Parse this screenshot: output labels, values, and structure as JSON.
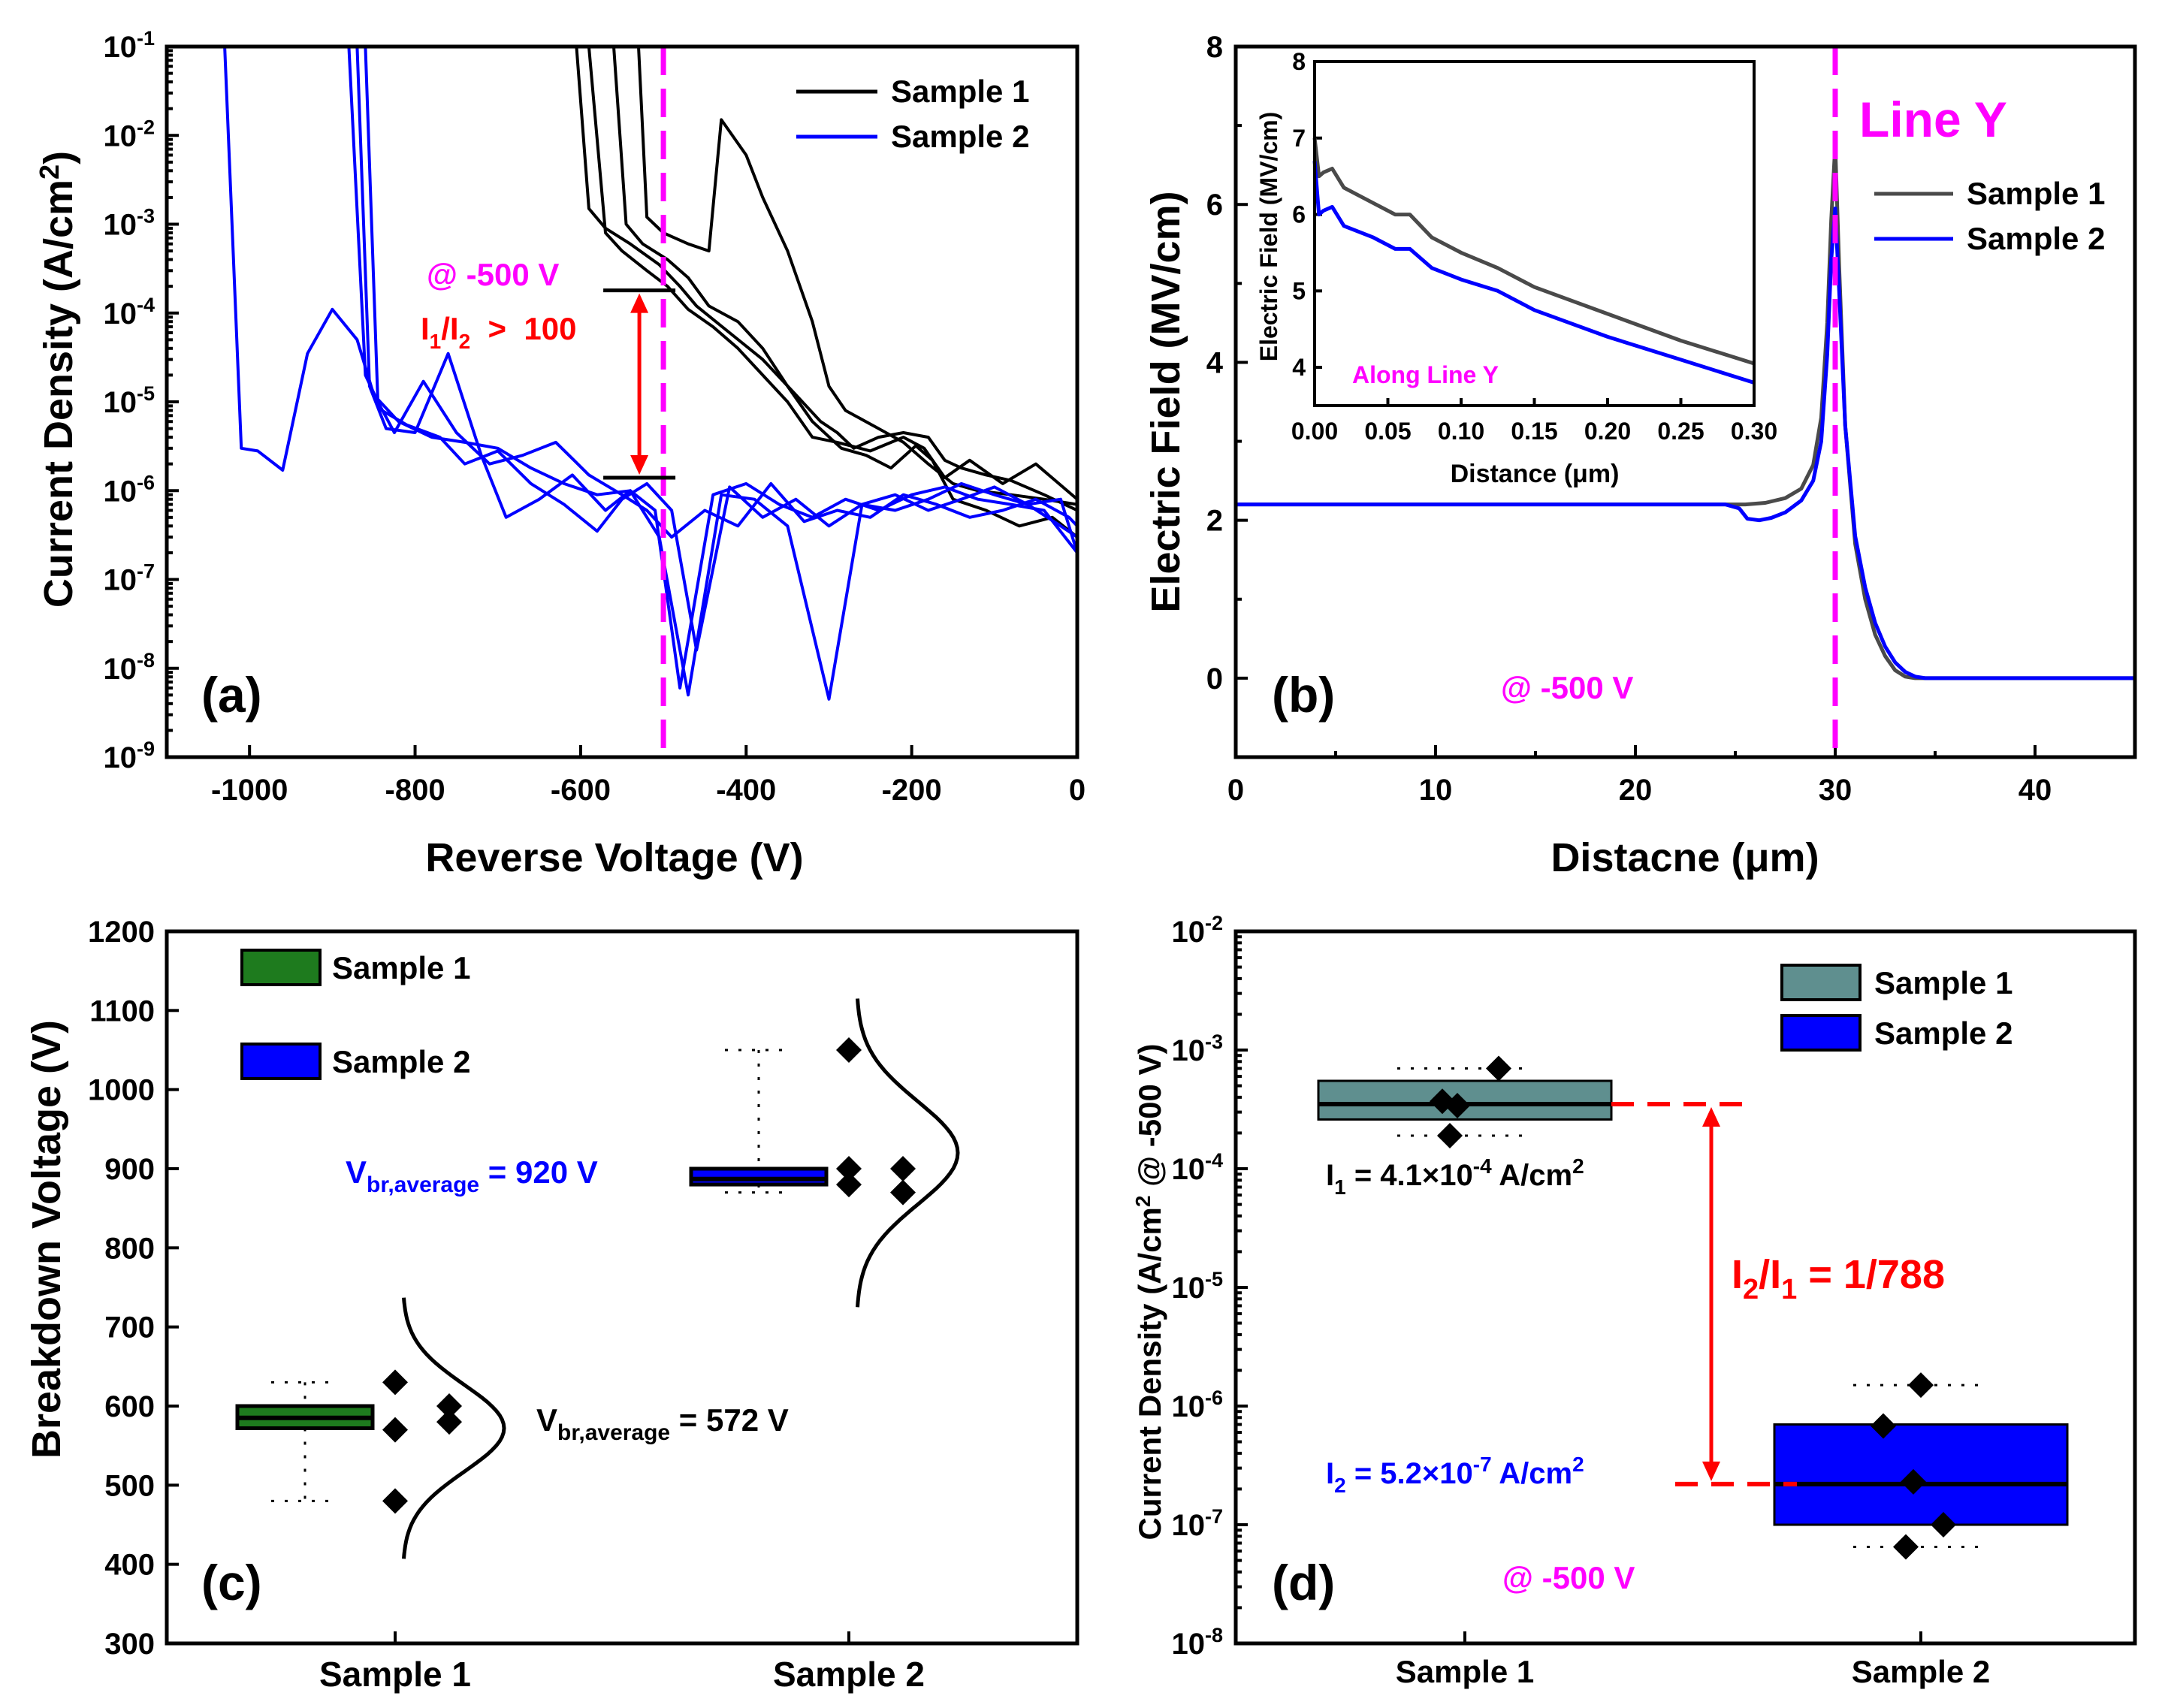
{
  "figure": "four-panel reverse breakdown comparison",
  "colors": {
    "sample1": "#000000",
    "sample1_gray": "#4a4a4a",
    "sample2": "#0000ff",
    "magenta": "#ff00ff",
    "red": "#ff0000",
    "green": "#1e7b1e",
    "teal": "#5f8f8f"
  },
  "chart_data": [
    {
      "panel_label": "(a)",
      "type": "line",
      "yscale": "log",
      "xlabel": "Reverse Voltage (V)",
      "ylabel_main": "Current Density (A/cm",
      "ylabel_sup": "2",
      "ylabel_end": ")",
      "xlim": [
        -1100,
        0
      ],
      "ylim_exp": [
        -9,
        -1
      ],
      "xticks": [
        -1000,
        -800,
        -600,
        -400,
        -200,
        0
      ],
      "ytick_exps": [
        -9,
        -8,
        -7,
        -6,
        -5,
        -4,
        -3,
        -2,
        -1
      ],
      "ytick_base": "10",
      "legend": [
        "Sample 1",
        "Sample 2"
      ],
      "annotation_voltage": "@ -500 V",
      "ratio_parts": [
        "I",
        "1",
        "/I",
        "2",
        "  >  100"
      ],
      "marker_x": -500,
      "arrow_top": 0.00018,
      "arrow_bottom": 1.4e-06,
      "series": [
        {
          "name": "Sample 1",
          "x": [
            -605,
            -590,
            -570,
            -540,
            -505,
            -480,
            -460,
            -420,
            -380,
            -340,
            -310,
            -290,
            -270,
            -240,
            -210,
            -180,
            -160,
            -140,
            -110,
            -80,
            -40,
            0
          ],
          "y": [
            0.1,
            0.0015,
            0.0009,
            0.0006,
            0.00035,
            0.0002,
            0.00012,
            6e-05,
            3e-05,
            1.2e-05,
            6e-06,
            4.5e-06,
            3e-06,
            4e-06,
            4.5e-06,
            4e-06,
            2.2e-06,
            1.8e-06,
            1.5e-06,
            1.3e-06,
            9e-07,
            6e-07
          ]
        },
        {
          "name": "Sample 1",
          "x": [
            -590,
            -570,
            -550,
            -520,
            -495,
            -470,
            -440,
            -410,
            -380,
            -350,
            -320,
            -290,
            -250,
            -210,
            -185,
            -160,
            -130,
            -90,
            -50,
            0
          ],
          "y": [
            0.1,
            0.0008,
            0.0005,
            0.0003,
            0.0002,
            0.00011,
            7e-05,
            4e-05,
            2e-05,
            1e-05,
            4e-06,
            3.5e-06,
            2.8e-06,
            4e-06,
            3e-06,
            1.4e-06,
            2.2e-06,
            1.2e-06,
            2e-06,
            8e-07
          ]
        },
        {
          "name": "Sample 1",
          "x": [
            -560,
            -545,
            -525,
            -495,
            -470,
            -445,
            -410,
            -380,
            -350,
            -320,
            -285,
            -255,
            -225,
            -195,
            -175,
            -150,
            -110,
            -70,
            -30,
            0
          ],
          "y": [
            0.1,
            0.001,
            0.0006,
            0.0004,
            0.00025,
            0.00012,
            8e-05,
            4e-05,
            1.5e-05,
            6e-06,
            3e-06,
            2.5e-06,
            1.8e-06,
            3.2e-06,
            2.2e-06,
            8e-07,
            6e-07,
            4e-07,
            5e-07,
            3e-07
          ]
        },
        {
          "name": "Sample 1",
          "x": [
            -530,
            -520,
            -500,
            -470,
            -445,
            -430,
            -400,
            -380,
            -350,
            -320,
            -300,
            -280,
            -240,
            -210,
            -180,
            -150,
            -120,
            -80,
            -40,
            0
          ],
          "y": [
            0.1,
            0.0012,
            0.0008,
            0.0006,
            0.0005,
            0.015,
            0.006,
            0.002,
            0.0005,
            8e-05,
            1.5e-05,
            8e-06,
            5e-06,
            3.5e-06,
            2e-06,
            1.2e-06,
            1e-06,
            9e-07,
            8e-07,
            7e-07
          ]
        },
        {
          "name": "Sample 2",
          "x": [
            -1030,
            -1010,
            -990,
            -960,
            -930,
            -900,
            -870,
            -850,
            -820,
            -780,
            -740,
            -700,
            -660,
            -620,
            -580,
            -540,
            -510,
            -480,
            -440,
            -400,
            -360,
            -320,
            -280,
            -240,
            -200,
            -160,
            -120,
            -80,
            -40,
            0
          ],
          "y": [
            0.1,
            3e-06,
            2.8e-06,
            1.7e-06,
            3.5e-05,
            0.00011,
            5e-05,
            1.2e-05,
            6e-06,
            4e-06,
            3.5e-06,
            3e-06,
            1.8e-06,
            1.2e-06,
            9e-07,
            1e-06,
            6e-07,
            6e-09,
            9e-07,
            1.2e-06,
            7e-07,
            5e-07,
            8e-07,
            6e-07,
            9e-07,
            1.1e-06,
            8e-07,
            7e-07,
            6e-07,
            2e-07
          ]
        },
        {
          "name": "Sample 2",
          "x": [
            -880,
            -860,
            -840,
            -810,
            -770,
            -740,
            -700,
            -660,
            -620,
            -580,
            -550,
            -520,
            -490,
            -460,
            -420,
            -380,
            -340,
            -300,
            -260,
            -220,
            -180,
            -140,
            -100,
            -60,
            -20,
            0
          ],
          "y": [
            0.1,
            2e-05,
            8e-06,
            5.5e-06,
            4e-06,
            2e-06,
            2.8e-06,
            1.2e-06,
            7e-07,
            3.5e-07,
            8e-07,
            1.2e-06,
            6e-07,
            1.6e-08,
            1.1e-06,
            5e-07,
            8e-07,
            4e-07,
            7e-07,
            9e-07,
            6e-07,
            8e-07,
            1.1e-06,
            7e-07,
            4e-07,
            3e-07
          ]
        },
        {
          "name": "Sample 2",
          "x": [
            -870,
            -855,
            -835,
            -800,
            -760,
            -720,
            -690,
            -650,
            -610,
            -570,
            -540,
            -505,
            -470,
            -430,
            -390,
            -350,
            -300,
            -260,
            -220,
            -180,
            -140,
            -100,
            -60,
            -20,
            0
          ],
          "y": [
            0.1,
            1.5e-05,
            5e-06,
            4.5e-06,
            3.5e-05,
            2.5e-06,
            5e-07,
            8e-07,
            1.5e-06,
            6e-07,
            1e-06,
            3e-07,
            5e-09,
            9e-07,
            8e-07,
            4e-07,
            4.5e-09,
            7e-07,
            6e-07,
            8e-07,
            1.2e-06,
            9e-07,
            7e-07,
            8e-07,
            2e-07
          ]
        },
        {
          "name": "Sample 2",
          "x": [
            -860,
            -845,
            -825,
            -790,
            -750,
            -710,
            -670,
            -630,
            -590,
            -550,
            -520,
            -490,
            -450,
            -410,
            -370,
            -330,
            -290,
            -250,
            -210,
            -170,
            -130,
            -90,
            -50,
            -10,
            0
          ],
          "y": [
            0.1,
            1e-05,
            4.5e-06,
            1.7e-05,
            4.5e-06,
            2e-06,
            2.5e-06,
            3.5e-06,
            1.5e-06,
            9e-07,
            6e-07,
            3e-07,
            6e-07,
            4e-07,
            1.2e-06,
            4.5e-07,
            6e-07,
            5e-07,
            9e-07,
            7e-07,
            5e-07,
            6e-07,
            8e-07,
            5e-07,
            4e-07
          ]
        }
      ]
    },
    {
      "panel_label": "(b)",
      "type": "line",
      "xlabel": "Distacne (μm)",
      "ylabel": "Electric Field (MV/cm)",
      "xlim": [
        0,
        45
      ],
      "ylim": [
        -1,
        8
      ],
      "xticks": [
        0,
        10,
        20,
        30,
        40
      ],
      "yticks": [
        0,
        2,
        4,
        6,
        8
      ],
      "legend": [
        "Sample 1",
        "Sample 2"
      ],
      "line_label": "Line Y",
      "line_x": 30,
      "annotation_voltage": "@ -500 V",
      "series": [
        {
          "name": "Sample 1",
          "x": [
            0,
            24.5,
            25.5,
            26.5,
            27.5,
            28.3,
            28.9,
            29.3,
            29.6,
            29.8,
            30.0,
            30.2,
            30.5,
            31.0,
            31.5,
            32.0,
            32.5,
            33.0,
            33.5,
            34.0,
            35.0,
            45.0
          ],
          "y": [
            2.2,
            2.2,
            2.2,
            2.22,
            2.28,
            2.4,
            2.7,
            3.3,
            4.5,
            5.8,
            6.75,
            5.2,
            3.2,
            1.7,
            1.0,
            0.55,
            0.28,
            0.1,
            0.02,
            0,
            0,
            0
          ]
        },
        {
          "name": "Sample 2",
          "x": [
            0,
            24.5,
            25.2,
            25.6,
            26.2,
            26.8,
            27.5,
            28.3,
            28.9,
            29.3,
            29.6,
            29.8,
            30.0,
            30.2,
            30.5,
            31.0,
            31.5,
            32.0,
            32.5,
            33.0,
            33.5,
            34.0,
            34.5,
            35.0,
            45.0
          ],
          "y": [
            2.2,
            2.2,
            2.15,
            2.02,
            2.0,
            2.03,
            2.1,
            2.25,
            2.5,
            3.0,
            4.1,
            5.3,
            5.95,
            4.9,
            3.2,
            1.8,
            1.15,
            0.7,
            0.4,
            0.2,
            0.08,
            0.02,
            0,
            0,
            0
          ]
        }
      ],
      "inset": {
        "xlabel": "Distance (μm)",
        "ylabel": "Electric Field (MV/cm)",
        "xlim": [
          0,
          0.3
        ],
        "ylim": [
          3.5,
          8
        ],
        "xticks": [
          "0.00",
          "0.05",
          "0.10",
          "0.15",
          "0.20",
          "0.25",
          "0.30"
        ],
        "yticks": [
          4,
          5,
          6,
          7,
          8
        ],
        "label": "Along Line Y",
        "series": [
          {
            "name": "Sample 1",
            "x": [
              0,
              0.003,
              0.006,
              0.012,
              0.02,
              0.04,
              0.055,
              0.065,
              0.08,
              0.1,
              0.125,
              0.15,
              0.2,
              0.25,
              0.3
            ],
            "y": [
              7.0,
              6.5,
              6.55,
              6.6,
              6.35,
              6.15,
              6.0,
              6.0,
              5.7,
              5.5,
              5.3,
              5.05,
              4.7,
              4.35,
              4.05
            ]
          },
          {
            "name": "Sample 2",
            "x": [
              0,
              0.003,
              0.006,
              0.012,
              0.02,
              0.04,
              0.055,
              0.065,
              0.08,
              0.1,
              0.125,
              0.15,
              0.2,
              0.25,
              0.3
            ],
            "y": [
              6.7,
              6.0,
              6.05,
              6.1,
              5.85,
              5.7,
              5.55,
              5.55,
              5.3,
              5.15,
              5.0,
              4.75,
              4.4,
              4.1,
              3.8
            ]
          }
        ]
      }
    },
    {
      "panel_label": "(c)",
      "type": "box",
      "ylabel": "Breakdown Voltage (V)",
      "categories": [
        "Sample 1",
        "Sample 2"
      ],
      "ylim": [
        300,
        1200
      ],
      "yticks": [
        300,
        400,
        500,
        600,
        700,
        800,
        900,
        1000,
        1100,
        1200
      ],
      "legend": [
        "Sample 1",
        "Sample 2"
      ],
      "boxes": [
        {
          "name": "Sample 1",
          "q1": 572,
          "median": 585,
          "q3": 600,
          "whisker_low": 480,
          "whisker_high": 630,
          "points_left": [
            630,
            570,
            480
          ],
          "points_right": [
            600,
            580
          ],
          "dist_mean": 572,
          "dist_sd": 55
        },
        {
          "name": "Sample 2",
          "q1": 880,
          "median": 887,
          "q3": 900,
          "whisker_low": 870,
          "whisker_high": 1050,
          "points_left": [
            1050,
            900,
            880
          ],
          "points_right": [
            900,
            870
          ],
          "dist_mean": 920,
          "dist_sd": 65
        }
      ],
      "avg_labels": [
        {
          "pre": "V",
          "sub": "br,average",
          "post": " = 572 V"
        },
        {
          "pre": "V",
          "sub": "br,average",
          "post": " = 920 V"
        }
      ]
    },
    {
      "panel_label": "(d)",
      "type": "box",
      "yscale": "log",
      "ylabel": "Current Density (A/cm",
      "ylabel_sup": "2",
      "ylabel_end": " @ -500 V)",
      "categories": [
        "Sample 1",
        "Sample 2"
      ],
      "ylim_exp": [
        -8,
        -2
      ],
      "ytick_exps": [
        -8,
        -7,
        -6,
        -5,
        -4,
        -3,
        -2
      ],
      "ytick_base": "10",
      "legend": [
        "Sample 1",
        "Sample 2"
      ],
      "annotation_voltage": "@ -500 V",
      "boxes": [
        {
          "name": "Sample 1",
          "q1": 0.00026,
          "median": 0.00035,
          "q3": 0.00055,
          "whisker_low": 0.00019,
          "whisker_high": 0.0007,
          "points": [
            0.0007,
            0.00037,
            0.00034,
            0.00019
          ]
        },
        {
          "name": "Sample 2",
          "q1": 1e-07,
          "median": 2.2e-07,
          "q3": 7e-07,
          "whisker_low": 6.5e-08,
          "whisker_high": 1.5e-06,
          "points": [
            1.5e-06,
            6.8e-07,
            2.3e-07,
            1e-07,
            6.5e-08
          ]
        }
      ],
      "i1_label": {
        "pre": "I",
        "sub": "1",
        "mid": " = 4.1×10",
        "sup": "-4",
        "post": " A/cm",
        "sup2": "2"
      },
      "i2_label": {
        "pre": "I",
        "sub": "2",
        "mid": " = 5.2×10",
        "sup": "-7",
        "post": " A/cm",
        "sup2": "2"
      },
      "ratio_label": {
        "a": "I",
        "a_sub": "2",
        "b": "/I",
        "b_sub": "1",
        "c": " = 1/788"
      },
      "i1_value": 0.00035,
      "i2_value": 2.2e-07
    }
  ]
}
